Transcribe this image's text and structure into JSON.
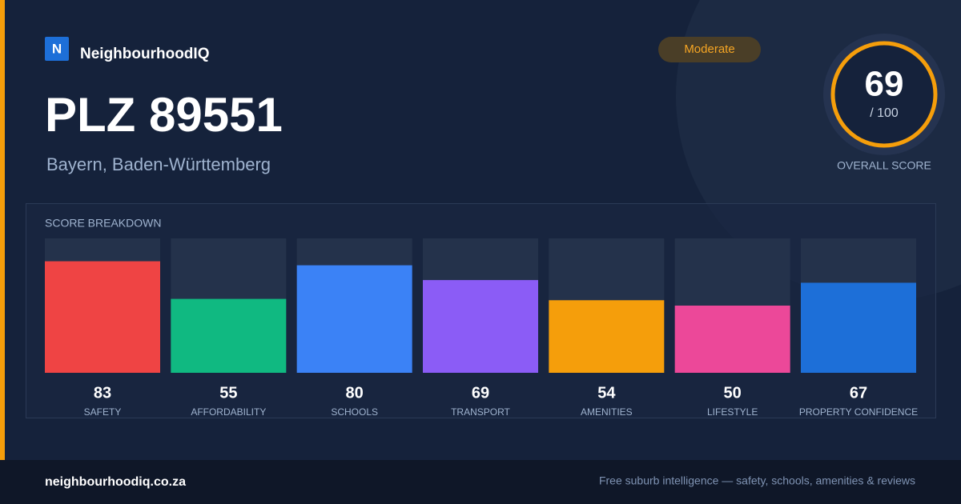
{
  "brand": {
    "logo": "N",
    "name": "NeighbourhoodIQ"
  },
  "title": "PLZ 89551",
  "subtitle": "Bayern, Baden-Württemberg",
  "badge": "Moderate",
  "overall": {
    "score": 69,
    "out_of": "/ 100",
    "label": "OVERALL SCORE"
  },
  "breakdown": {
    "title": "SCORE BREAKDOWN",
    "ylim": [
      0,
      100
    ],
    "categories": [
      "SAFETY",
      "AFFORDABILITY",
      "SCHOOLS",
      "TRANSPORT",
      "AMENITIES",
      "LIFESTYLE",
      "PROPERTY CONFIDENCE"
    ],
    "values": [
      83,
      55,
      80,
      69,
      54,
      50,
      67
    ],
    "colors": [
      "#ef4444",
      "#10b981",
      "#3b82f6",
      "#8b5cf6",
      "#f59e0b",
      "#ec4899",
      "#1d6fd8"
    ]
  },
  "footer": {
    "site": "neighbourhoodiq.co.za",
    "tagline": "Free suburb intelligence — safety, schools, amenities & reviews"
  }
}
